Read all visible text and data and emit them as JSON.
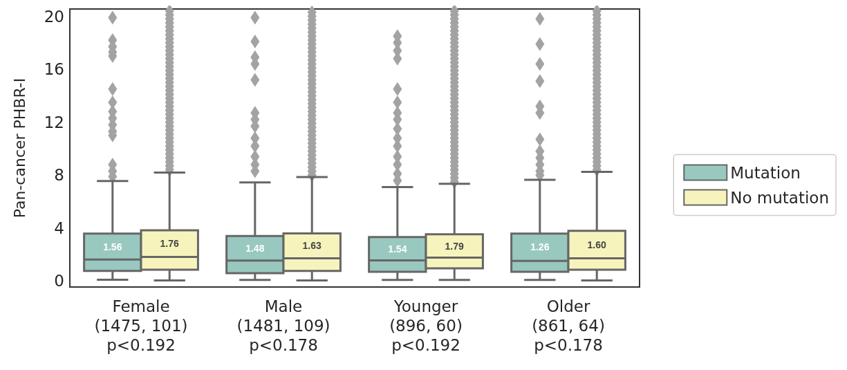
{
  "chart_data": {
    "type": "box",
    "ylabel": "Pan-cancer PHBR-I",
    "categories": [
      "Female\n(1475, 101)\np<0.192",
      "Male\n(1481, 109)\np<0.178",
      "Younger\n(896, 60)\np<0.192",
      "Older\n(861, 64)\np<0.178"
    ],
    "ylim": [
      -0.45,
      20.55
    ],
    "yticks": [
      0,
      4,
      8,
      12,
      16,
      20
    ],
    "grid": false,
    "legend": "right",
    "marker": "diamond",
    "series": [
      {
        "name": "Mutation",
        "color": "#98c8bf",
        "value_labels": [
          "1.56",
          "1.48",
          "1.54",
          "1.26"
        ],
        "boxes": [
          {
            "low": 0.1,
            "q1": 0.76,
            "median": 1.62,
            "q3": 3.59,
            "high": 7.55,
            "outliers": [
              7.9,
              8.3,
              8.8,
              11.0,
              11.3,
              11.8,
              12.3,
              12.8,
              13.5,
              14.5,
              17.0,
              17.3,
              17.7,
              18.2,
              19.9
            ]
          },
          {
            "low": 0.08,
            "q1": 0.6,
            "median": 1.55,
            "q3": 3.4,
            "high": 7.45,
            "outliers": [
              8.3,
              8.8,
              9.4,
              10.2,
              10.8,
              11.7,
              12.2,
              12.7,
              15.2,
              16.4,
              16.9,
              18.1,
              19.9
            ]
          },
          {
            "low": 0.08,
            "q1": 0.7,
            "median": 1.56,
            "q3": 3.33,
            "high": 7.1,
            "outliers": [
              7.6,
              8.1,
              8.8,
              9.4,
              10.2,
              10.8,
              11.5,
              12.2,
              12.7,
              13.5,
              14.5,
              16.8,
              17.4,
              18.0,
              18.5
            ]
          },
          {
            "low": 0.08,
            "q1": 0.7,
            "median": 1.52,
            "q3": 3.59,
            "high": 7.65,
            "outliers": [
              8.0,
              8.3,
              8.8,
              9.3,
              9.8,
              10.7,
              12.7,
              13.2,
              15.1,
              16.4,
              17.9,
              19.8
            ]
          }
        ]
      },
      {
        "name": "No mutation",
        "color": "#f6f4bc",
        "value_labels": [
          "1.76",
          "1.63",
          "1.79",
          "1.60"
        ],
        "boxes": [
          {
            "low": 0.05,
            "q1": 0.86,
            "median": 1.82,
            "q3": 3.84,
            "high": 8.2,
            "outliers": [
              8.4,
              8.7,
              9.0,
              9.3,
              9.6,
              9.9,
              10.2,
              10.5,
              10.8,
              11.1,
              11.4,
              11.7,
              12.0,
              12.3,
              12.6,
              12.9,
              13.2,
              13.5,
              13.8,
              14.1,
              14.4,
              14.7,
              15.0,
              15.3,
              15.6,
              15.9,
              16.2,
              16.5,
              16.8,
              17.1,
              17.4,
              17.7,
              18.0,
              18.3,
              18.6,
              18.9,
              19.2,
              19.5,
              19.8,
              20.1,
              20.4
            ]
          },
          {
            "low": 0.05,
            "q1": 0.76,
            "median": 1.72,
            "q3": 3.6,
            "high": 7.85,
            "outliers": [
              8.0,
              8.3,
              8.6,
              8.9,
              9.2,
              9.5,
              9.8,
              10.1,
              10.4,
              10.7,
              11.0,
              11.3,
              11.6,
              11.9,
              12.2,
              12.5,
              12.8,
              13.1,
              13.4,
              13.7,
              14.0,
              14.3,
              14.6,
              14.9,
              15.2,
              15.5,
              15.8,
              16.1,
              16.4,
              16.7,
              17.0,
              17.3,
              17.6,
              17.9,
              18.2,
              18.5,
              18.8,
              19.1,
              19.4,
              19.7,
              20.0,
              20.3
            ]
          },
          {
            "low": 0.08,
            "q1": 0.96,
            "median": 1.77,
            "q3": 3.53,
            "high": 7.35,
            "outliers": [
              7.5,
              7.8,
              8.1,
              8.4,
              8.7,
              9.0,
              9.3,
              9.6,
              9.9,
              10.2,
              10.5,
              10.8,
              11.1,
              11.4,
              11.7,
              12.0,
              12.3,
              12.6,
              12.9,
              13.2,
              13.5,
              13.8,
              14.1,
              14.4,
              14.7,
              15.0,
              15.3,
              15.6,
              15.9,
              16.2,
              16.5,
              16.8,
              17.1,
              17.4,
              17.7,
              18.0,
              18.3,
              18.6,
              18.9,
              19.2,
              19.5,
              19.8,
              20.1,
              20.4
            ]
          },
          {
            "low": 0.05,
            "q1": 0.86,
            "median": 1.72,
            "q3": 3.79,
            "high": 8.25,
            "outliers": [
              8.4,
              8.7,
              9.0,
              9.3,
              9.6,
              9.9,
              10.2,
              10.5,
              10.8,
              11.1,
              11.4,
              11.7,
              12.0,
              12.3,
              12.6,
              12.9,
              13.2,
              13.5,
              13.8,
              14.1,
              14.4,
              14.7,
              15.0,
              15.3,
              15.6,
              15.9,
              16.2,
              16.5,
              16.8,
              17.1,
              17.4,
              17.7,
              18.0,
              18.3,
              18.6,
              18.9,
              19.2,
              19.5,
              19.8,
              20.1,
              20.4
            ]
          }
        ]
      }
    ]
  }
}
